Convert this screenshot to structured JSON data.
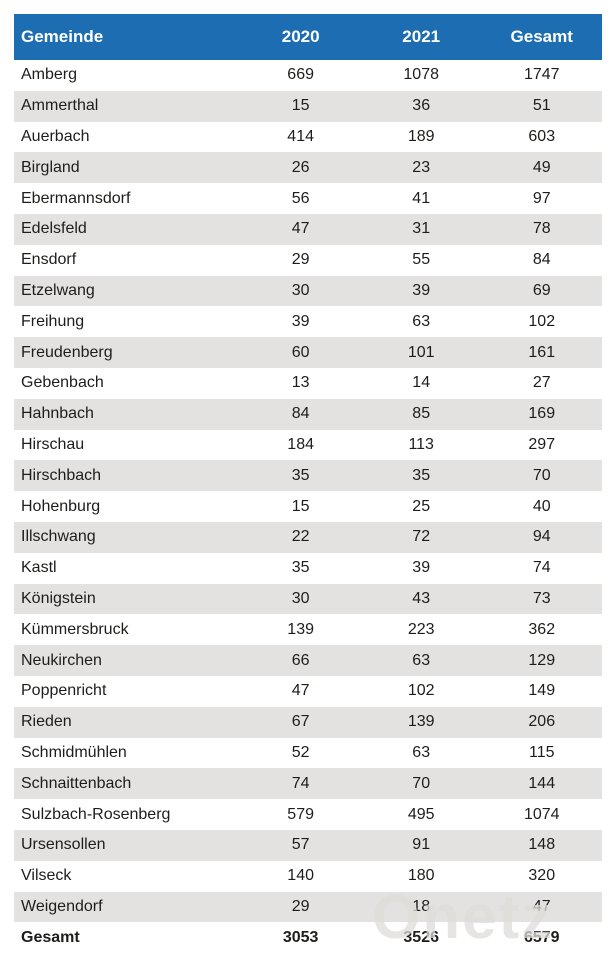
{
  "chart_data": {
    "type": "table",
    "title": "",
    "columns": [
      "Gemeinde",
      "2020",
      "2021",
      "Gesamt"
    ],
    "rows": [
      [
        "Amberg",
        669,
        1078,
        1747
      ],
      [
        "Ammerthal",
        15,
        36,
        51
      ],
      [
        "Auerbach",
        414,
        189,
        603
      ],
      [
        "Birgland",
        26,
        23,
        49
      ],
      [
        "Ebermannsdorf",
        56,
        41,
        97
      ],
      [
        "Edelsfeld",
        47,
        31,
        78
      ],
      [
        "Ensdorf",
        29,
        55,
        84
      ],
      [
        "Etzelwang",
        30,
        39,
        69
      ],
      [
        "Freihung",
        39,
        63,
        102
      ],
      [
        "Freudenberg",
        60,
        101,
        161
      ],
      [
        "Gebenbach",
        13,
        14,
        27
      ],
      [
        "Hahnbach",
        84,
        85,
        169
      ],
      [
        "Hirschau",
        184,
        113,
        297
      ],
      [
        "Hirschbach",
        35,
        35,
        70
      ],
      [
        "Hohenburg",
        15,
        25,
        40
      ],
      [
        "Illschwang",
        22,
        72,
        94
      ],
      [
        "Kastl",
        35,
        39,
        74
      ],
      [
        "Königstein",
        30,
        43,
        73
      ],
      [
        "Kümmersbruck",
        139,
        223,
        362
      ],
      [
        "Neukirchen",
        66,
        63,
        129
      ],
      [
        "Poppenricht",
        47,
        102,
        149
      ],
      [
        "Rieden",
        67,
        139,
        206
      ],
      [
        "Schmidmühlen",
        52,
        63,
        115
      ],
      [
        "Schnaittenbach",
        74,
        70,
        144
      ],
      [
        "Sulzbach-Rosenberg",
        579,
        495,
        1074
      ],
      [
        "Ursensollen",
        57,
        91,
        148
      ],
      [
        "Vilseck",
        140,
        180,
        320
      ],
      [
        "Weigendorf",
        29,
        18,
        47
      ]
    ],
    "total_row": [
      "Gesamt",
      3053,
      3526,
      6579
    ],
    "layout": {
      "striped": true,
      "stripe_pattern": "even-rows-gray",
      "value_alignment": "center",
      "name_alignment": "left"
    }
  },
  "watermark": {
    "text": "Onetz"
  },
  "colors": {
    "header_bg": "#1d6db3",
    "header_text": "#ffffff",
    "row_alt_bg": "#e3e2e0",
    "text": "#1d1d1b",
    "page_bg": "#ffffff"
  }
}
